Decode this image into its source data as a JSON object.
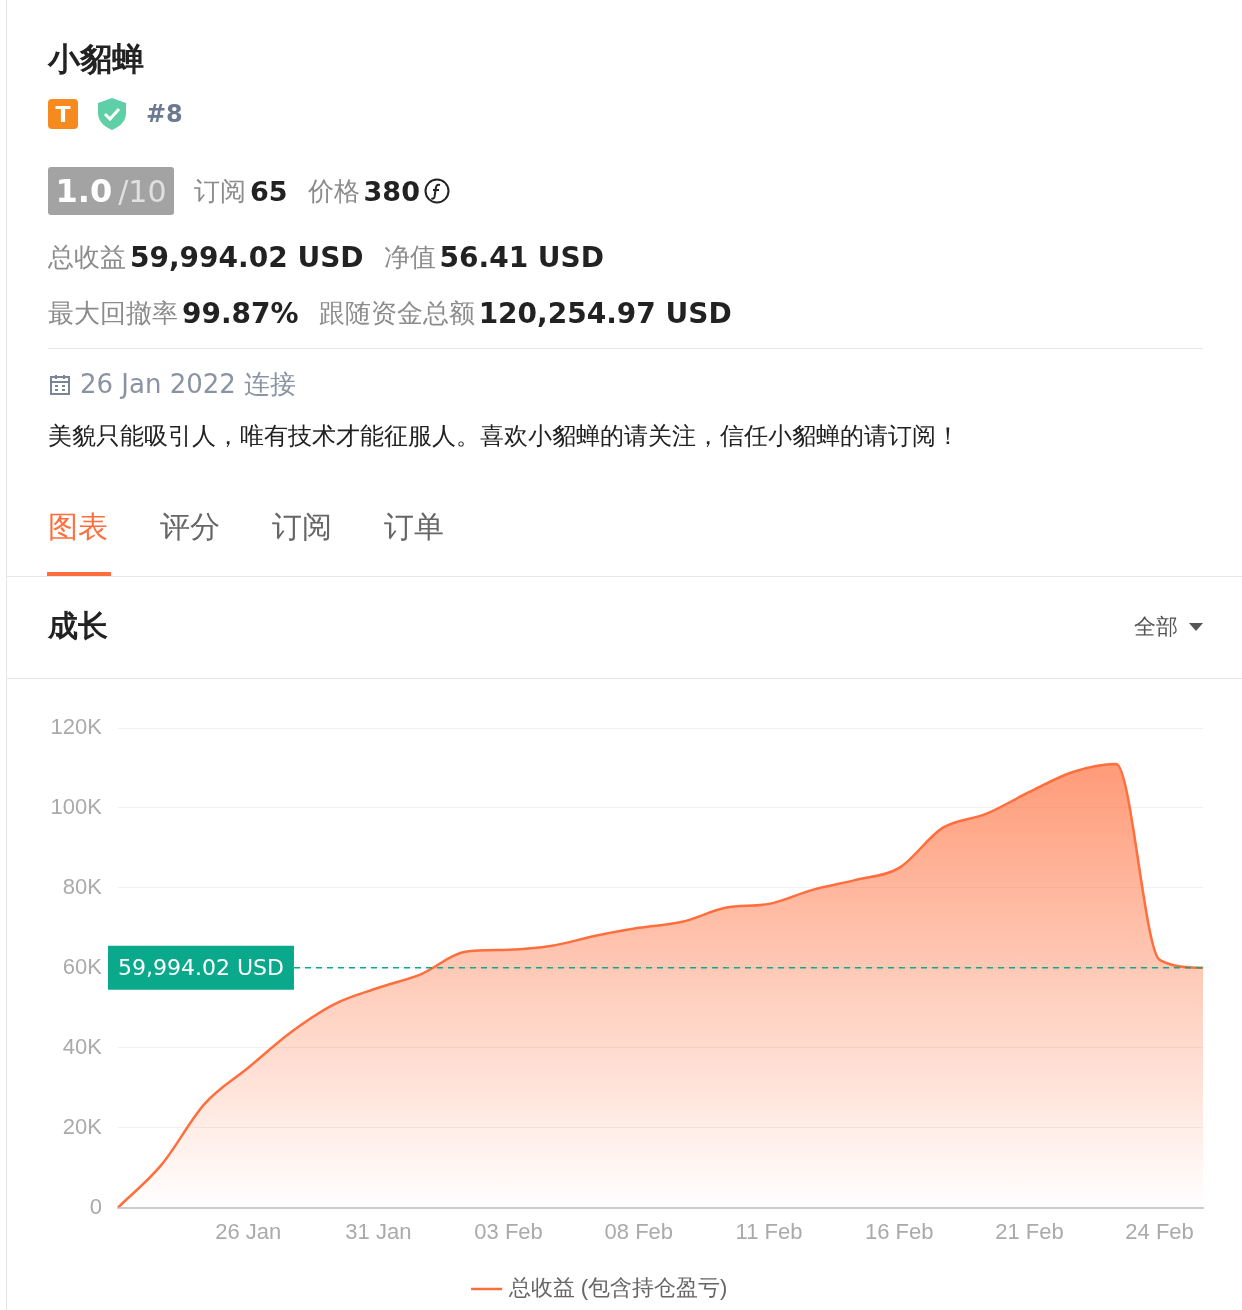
{
  "chart_data": {
    "type": "area",
    "title": "成长",
    "annotations": [
      "小貂蝉",
      "T",
      "#8",
      "1.0",
      "/10",
      "订阅",
      "65",
      "价格",
      "380",
      "总收益",
      "59,994.02 USD",
      "净值",
      "56.41 USD",
      "最大回撤率",
      "99.87%",
      "跟随资金总额",
      "120,254.97 USD",
      "26 Jan 2022 连接",
      "美貌只能吸引人，唯有技术才能征服人。喜欢小貂蝉的请关注，信任小貂蝉的请订阅！",
      "图表",
      "评分",
      "订阅",
      "订单",
      "全部"
    ],
    "categories": [
      null,
      null,
      null,
      "26 Jan",
      null,
      null,
      "31 Jan",
      null,
      null,
      "03 Feb",
      null,
      null,
      "08 Feb",
      null,
      null,
      "11 Feb",
      null,
      null,
      "16 Feb",
      null,
      null,
      "21 Feb",
      null,
      null,
      "24 Feb",
      null
    ],
    "series": [
      {
        "name": "总收益 (包含持仓盈亏)",
        "color": "#ff6e3c",
        "values": [
          0,
          10700,
          26000,
          35000,
          44000,
          51000,
          55000,
          58500,
          64000,
          64500,
          65500,
          68000,
          70000,
          71500,
          75000,
          76000,
          79500,
          82000,
          85000,
          95000,
          98500,
          104000,
          109000,
          111000,
          62000,
          59994.02
        ]
      }
    ],
    "ylim": [
      0,
      120000
    ],
    "yticks": [
      0,
      {
        "value": 20000,
        "label": "20K"
      },
      {
        "value": 40000,
        "label": "40K"
      },
      {
        "value": 60000,
        "label": "60K"
      },
      {
        "value": 80000,
        "label": "80K"
      },
      {
        "value": 100000,
        "label": "100K"
      },
      {
        "value": 120000,
        "label": "120K"
      }
    ],
    "ref_lines": [
      {
        "axis": "y",
        "value": 59994.02,
        "label": "59,994.02 USD",
        "color": "#0aa98c",
        "line_style": "dashed"
      }
    ],
    "grid": "y",
    "legend": "bottom"
  }
}
